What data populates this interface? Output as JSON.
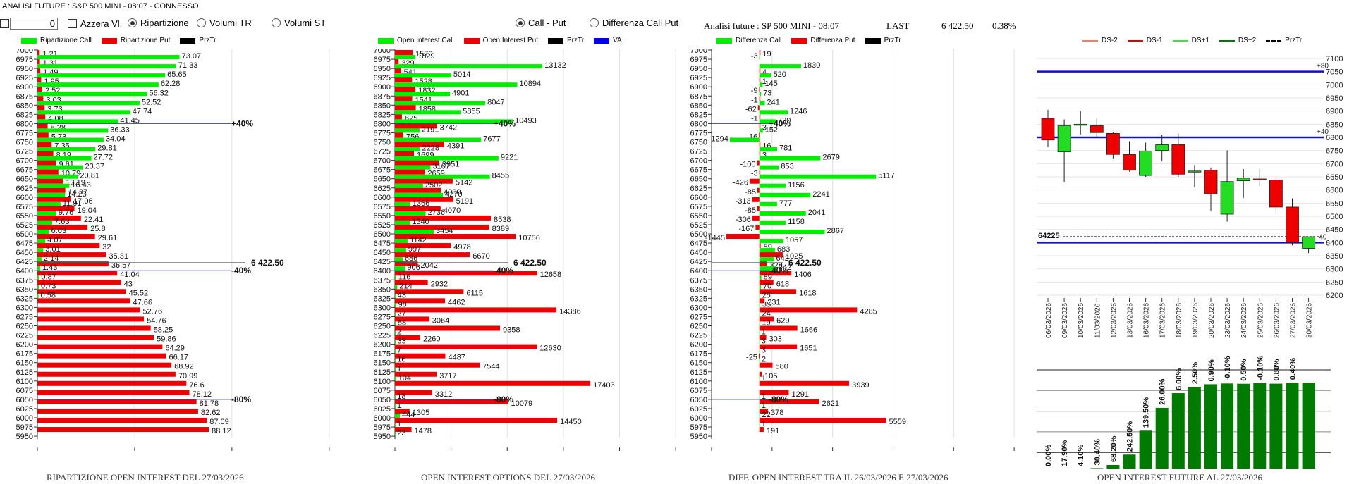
{
  "window": {
    "title": "ANALISI FUTURE : S&P 500 MINI - 08:07 - CONNESSO"
  },
  "controls": {
    "number_value": "0",
    "reset_label": "Azzera Vl.",
    "mode_options": [
      {
        "label": "Ripartizione",
        "selected": true
      },
      {
        "label": "Volumi TR",
        "selected": false
      },
      {
        "label": "Volumi ST",
        "selected": false
      }
    ],
    "view_options": [
      {
        "label": "Call - Put",
        "selected": true
      },
      {
        "label": "Differenza Call Put",
        "selected": false
      }
    ]
  },
  "quote": {
    "label": "Analisi future : SP 500 MINI - 08:07",
    "last_label": "LAST",
    "last_value": "6 422.50",
    "change": "0.38%"
  },
  "colors": {
    "call": "#00ee00",
    "put": "#ee0000",
    "prz": "#000000",
    "va": "#0000ee",
    "dark_green": "#007a00",
    "line_blue": "#1010c0"
  },
  "chart_data": [
    {
      "type": "bar",
      "id": "ripartizione",
      "title": "RIPARTIZIONE OPEN INTEREST DEL 27/03/2026",
      "legend": [
        "Ripartizione Call",
        "Ripartizione Put",
        "PrzTr"
      ],
      "categories": [
        7000,
        6975,
        6950,
        6925,
        6900,
        6875,
        6850,
        6825,
        6800,
        6775,
        6750,
        6725,
        6700,
        6675,
        6650,
        6625,
        6600,
        6575,
        6550,
        6525,
        6500,
        6475,
        6450,
        6425,
        6400,
        6375,
        6350,
        6325,
        6300,
        6275,
        6250,
        6225,
        6200,
        6175,
        6150,
        6125,
        6100,
        6075,
        6050,
        6025,
        6000,
        5975,
        5950
      ],
      "series": [
        {
          "name": "Ripartizione Call",
          "values": [
            null,
            73.07,
            71.33,
            65.65,
            62.28,
            56.32,
            52.52,
            47.74,
            41.45,
            36.33,
            34.04,
            29.81,
            27.72,
            23.37,
            20.81,
            16.43,
            14.23,
            11.91,
            9.76,
            7.63,
            6.03,
            4.07,
            3.01,
            2.14,
            1.43,
            0.87,
            0.73,
            0.58,
            null,
            null,
            null,
            null,
            null,
            null,
            null,
            null,
            null,
            null,
            null,
            null,
            null,
            null,
            null
          ]
        },
        {
          "name": "Ripartizione Put",
          "values": [
            1.21,
            1.31,
            1.49,
            1.95,
            2.52,
            3.03,
            3.73,
            4.08,
            5.28,
            5.73,
            7.35,
            8.19,
            9.61,
            10.79,
            13.19,
            14.37,
            17.06,
            19.04,
            22.41,
            25.8,
            29.61,
            32,
            35.31,
            36.57,
            41.04,
            43,
            45.52,
            47.66,
            52.76,
            54.76,
            58.25,
            59.86,
            64.29,
            66.17,
            68.92,
            70.99,
            76.6,
            78.12,
            81.78,
            82.62,
            87.09,
            88.12,
            null
          ]
        }
      ],
      "xlim": [
        0,
        170
      ],
      "xticks": [
        0,
        50,
        100,
        150
      ],
      "annotations": [
        {
          "strike": 6800,
          "label": "+40%",
          "kind": "va"
        },
        {
          "strike": 6425,
          "label": "6422.50",
          "kind": "price"
        },
        {
          "strike": 6400,
          "label": "-40%",
          "kind": "va"
        },
        {
          "strike": 6050,
          "label": "-80%",
          "kind": "va"
        }
      ]
    },
    {
      "type": "bar",
      "id": "open_interest",
      "title": "OPEN INTEREST OPTIONS DEL 27/03/2026",
      "legend": [
        "Open Interest Call",
        "Open Interest Put",
        "PrzTr",
        "VA"
      ],
      "categories": [
        7000,
        6975,
        6950,
        6925,
        6900,
        6875,
        6850,
        6825,
        6800,
        6775,
        6750,
        6725,
        6700,
        6675,
        6650,
        6625,
        6600,
        6575,
        6550,
        6525,
        6500,
        6475,
        6450,
        6425,
        6400,
        6375,
        6350,
        6325,
        6300,
        6275,
        6250,
        6225,
        6200,
        6175,
        6150,
        6125,
        6100,
        6075,
        6050,
        6025,
        6000,
        5975,
        5950
      ],
      "series": [
        {
          "name": "Open Interest Call",
          "values": [
            null,
            1829,
            13132,
            5014,
            10894,
            4901,
            8047,
            5855,
            10493,
            2191,
            7677,
            2228,
            9221,
            3167,
            8455,
            2502,
            4270,
            1366,
            2736,
            1340,
            3454,
            1142,
            997,
            686,
            906,
            116,
            214,
            43,
            98,
            27,
            58,
            2,
            33,
            7,
            16,
            1,
            104,
            null,
            18,
            1,
            444,
            1,
            23
          ]
        },
        {
          "name": "Open Interest Put",
          "values": [
            1570,
            329,
            541,
            1528,
            1832,
            1541,
            1858,
            625,
            3742,
            756,
            4391,
            1699,
            3951,
            2659,
            5142,
            4090,
            5191,
            4070,
            8538,
            8389,
            10756,
            4978,
            6670,
            2042,
            12658,
            2932,
            6115,
            4462,
            14386,
            3064,
            9358,
            2260,
            12630,
            4487,
            7544,
            3717,
            17403,
            3312,
            10079,
            1305,
            14450,
            1478,
            null
          ]
        }
      ],
      "xlim": [
        0,
        27000
      ],
      "xticks": [
        0,
        5000,
        10000,
        15000,
        20000,
        25000
      ],
      "annotations": [
        {
          "strike": 6800,
          "label": "+40%",
          "kind": "va"
        },
        {
          "strike": 6425,
          "label": "6422.50",
          "kind": "price"
        },
        {
          "strike": 6400,
          "label": "-40%",
          "kind": "va"
        },
        {
          "strike": 6050,
          "label": "-80%",
          "kind": "va"
        }
      ]
    },
    {
      "type": "bar",
      "id": "differenza",
      "title": "DIFF. OPEN INTEREST TRA IL 26/03/2026 E 27/03/2026",
      "legend": [
        "Differenza Call",
        "Differenza Put",
        "PrzTr"
      ],
      "categories": [
        7000,
        6975,
        6950,
        6925,
        6900,
        6875,
        6850,
        6825,
        6800,
        6775,
        6750,
        6725,
        6700,
        6675,
        6650,
        6625,
        6600,
        6575,
        6550,
        6525,
        6500,
        6475,
        6450,
        6425,
        6400,
        6375,
        6350,
        6325,
        6300,
        6275,
        6250,
        6225,
        6200,
        6175,
        6150,
        6125,
        6100,
        6075,
        6050,
        6025,
        6000,
        5975,
        5950
      ],
      "series": [
        {
          "name": "Differenza Call",
          "values": [
            null,
            -3,
            1830,
            520,
            145,
            73,
            241,
            1246,
            720,
            152,
            -1294,
            781,
            2679,
            853,
            5117,
            1156,
            2241,
            777,
            2041,
            1158,
            2867,
            1057,
            683,
            642,
            742,
            89,
            70,
            25,
            35,
            24,
            19,
            1,
            3,
            3,
            2,
            null,
            1,
            null,
            1,
            1,
            22,
            1,
            null
          ]
        },
        {
          "name": "Differenza Put",
          "values": [
            19,
            null,
            4,
            1,
            -9,
            -1,
            -62,
            -1,
            3,
            -16,
            16,
            3,
            -100,
            -3,
            -426,
            -85,
            -313,
            -85,
            -306,
            -167,
            -1445,
            59,
            1025,
            328,
            1406,
            618,
            1618,
            231,
            4285,
            629,
            1666,
            303,
            1651,
            -25,
            580,
            105,
            3939,
            1291,
            2621,
            378,
            5559,
            191,
            null
          ]
        }
      ],
      "xlim": [
        -2095.25,
        12500
      ],
      "xticks": [
        -2095.25,
        558.62,
        3212.49,
        5866.36,
        8520.23,
        11174.1
      ],
      "annotations": [
        {
          "strike": 6800,
          "label": "+40%",
          "kind": "va"
        },
        {
          "strike": 6425,
          "label": "6422.50",
          "kind": "price"
        },
        {
          "strike": 6400,
          "label": "-40%",
          "kind": "va"
        },
        {
          "strike": 6050,
          "label": "-80%",
          "kind": "va"
        }
      ]
    },
    {
      "type": "candlestick",
      "id": "candles",
      "legend": [
        "DS-2",
        "DS-1",
        "DS+1",
        "DS+2",
        "PrzTr"
      ],
      "x": [
        "06/03/2026",
        "09/03/2026",
        "10/03/2026",
        "11/03/2026",
        "12/03/2026",
        "13/03/2026",
        "16/03/2026",
        "17/03/2026",
        "18/03/2026",
        "19/03/2026",
        "20/03/2026",
        "23/03/2026",
        "24/03/2026",
        "25/03/2026",
        "26/03/2026",
        "27/03/2026",
        "30/03/2026"
      ],
      "ohlc": [
        [
          6872,
          6905,
          6765,
          6790
        ],
        [
          6745,
          6868,
          6630,
          6845
        ],
        [
          6850,
          6900,
          6810,
          6850
        ],
        [
          6845,
          6872,
          6800,
          6818
        ],
        [
          6815,
          6820,
          6720,
          6735
        ],
        [
          6735,
          6785,
          6670,
          6675
        ],
        [
          6655,
          6780,
          6650,
          6748
        ],
        [
          6750,
          6810,
          6710,
          6772
        ],
        [
          6772,
          6815,
          6650,
          6660
        ],
        [
          6672,
          6695,
          6610,
          6672
        ],
        [
          6675,
          6685,
          6520,
          6585
        ],
        [
          6508,
          6750,
          6480,
          6632
        ],
        [
          6635,
          6680,
          6570,
          6645
        ],
        [
          6642,
          6680,
          6615,
          6640
        ],
        [
          6638,
          6645,
          6515,
          6535
        ],
        [
          6535,
          6568,
          6390,
          6400
        ],
        [
          6378,
          6422,
          6360,
          6422
        ]
      ],
      "ylim": [
        6200,
        7100
      ],
      "yticks": [
        6200,
        6250,
        6300,
        6350,
        6400,
        6450,
        6500,
        6550,
        6600,
        6650,
        6700,
        6750,
        6800,
        6850,
        6900,
        6950,
        7000,
        7050,
        7100
      ],
      "levels": [
        {
          "value": 7050,
          "label": "+80"
        },
        {
          "value": 6800,
          "label": "+40"
        },
        {
          "value": 6400,
          "label": "-40"
        }
      ],
      "price_line": {
        "value": 6422.5,
        "label": "64225"
      }
    },
    {
      "type": "bar",
      "id": "oi_future",
      "title": "OPEN INTEREST FUTURE AL 27/03/2026",
      "categories": [
        "06/03/2026",
        "09/03/2026",
        "10/03/2026",
        "11/03/2026",
        "12/03/2026",
        "13/03/2026",
        "16/03/2026",
        "17/03/2026",
        "18/03/2026",
        "19/03/2026",
        "20/03/2026",
        "23/03/2026",
        "24/03/2026",
        "25/03/2026",
        "26/03/2026",
        "27/03/2026",
        "30/03/2026"
      ],
      "values": [
        0,
        0,
        0,
        0.4,
        3.6,
        14.1,
        38.4,
        61.5,
        76.4,
        82.8,
        85.4,
        86.2,
        85.9,
        86.6,
        86.0,
        87.0,
        87.0
      ],
      "labels": [
        "0.00%",
        "17.90%",
        "4.10%",
        "30.40%",
        "68.20%",
        "242.50%",
        "139.50%",
        "26.00%",
        "6.00%",
        "2.50%",
        "0.90%",
        "-0.10%",
        "0.50%",
        "-0.10%",
        "0.80%",
        "0.40%",
        ""
      ],
      "ylim": [
        0,
        100
      ]
    }
  ]
}
